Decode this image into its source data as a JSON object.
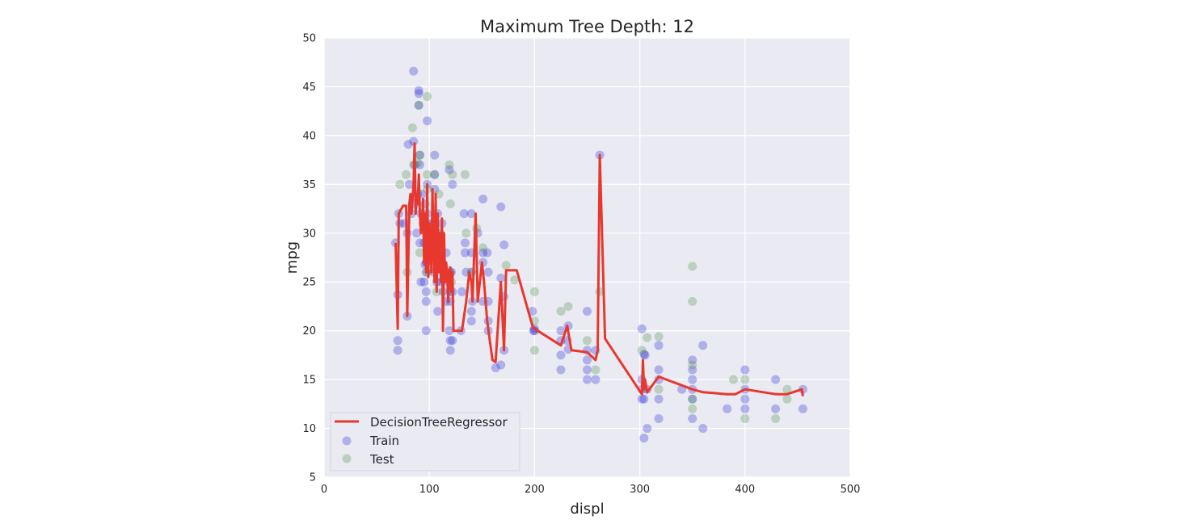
{
  "chart_data": {
    "type": "scatter",
    "title": "Maximum Tree Depth: 12",
    "xlabel": "displ",
    "ylabel": "mpg",
    "xlim": [
      0,
      500
    ],
    "ylim": [
      5,
      50
    ],
    "xticks": [
      0,
      100,
      200,
      300,
      400,
      500
    ],
    "yticks": [
      5,
      10,
      15,
      20,
      25,
      30,
      35,
      40,
      45,
      50
    ],
    "grid": true,
    "legend_position": "lower-left",
    "background": "#eaeaf2",
    "series": [
      {
        "name": "DecisionTreeRegressor",
        "kind": "line",
        "color": "#e8382e",
        "points": [
          [
            68,
            29
          ],
          [
            70,
            20.2
          ],
          [
            71,
            32
          ],
          [
            75,
            32.8
          ],
          [
            78,
            32.8
          ],
          [
            79,
            21.5
          ],
          [
            81,
            33
          ],
          [
            82,
            34
          ],
          [
            83,
            32
          ],
          [
            85,
            35
          ],
          [
            86,
            39.2
          ],
          [
            87,
            32
          ],
          [
            88,
            34
          ],
          [
            89,
            33
          ],
          [
            90,
            36
          ],
          [
            91,
            32
          ],
          [
            92,
            30
          ],
          [
            93,
            31
          ],
          [
            94,
            33.5
          ],
          [
            95,
            27
          ],
          [
            96,
            32
          ],
          [
            97,
            26
          ],
          [
            98,
            35
          ],
          [
            99,
            25.5
          ],
          [
            100,
            31
          ],
          [
            101,
            29
          ],
          [
            102,
            26
          ],
          [
            103,
            34.5
          ],
          [
            104,
            29
          ],
          [
            105,
            25
          ],
          [
            106,
            34
          ],
          [
            107,
            24
          ],
          [
            108,
            32
          ],
          [
            109,
            26
          ],
          [
            110,
            30
          ],
          [
            111,
            25
          ],
          [
            112,
            31.5
          ],
          [
            113,
            20
          ],
          [
            114,
            30
          ],
          [
            115,
            25
          ],
          [
            116,
            27
          ],
          [
            117,
            26
          ],
          [
            118,
            23
          ],
          [
            119,
            26
          ],
          [
            120,
            26.5
          ],
          [
            121,
            24
          ],
          [
            122,
            26
          ],
          [
            123,
            20
          ],
          [
            131,
            20
          ],
          [
            135,
            23
          ],
          [
            138,
            26
          ],
          [
            140,
            25
          ],
          [
            141,
            23
          ],
          [
            144,
            32
          ],
          [
            146,
            23
          ],
          [
            148,
            25
          ],
          [
            150,
            27
          ],
          [
            152,
            25
          ],
          [
            155,
            21
          ],
          [
            160,
            17
          ],
          [
            163,
            16.8
          ],
          [
            168,
            25
          ],
          [
            171,
            18
          ],
          [
            173,
            26.2
          ],
          [
            183,
            26.2
          ],
          [
            198,
            20.5
          ],
          [
            200,
            20.2
          ],
          [
            225,
            18.5
          ],
          [
            231,
            20.5
          ],
          [
            235,
            18
          ],
          [
            250,
            17.8
          ],
          [
            258,
            17
          ],
          [
            260,
            18
          ],
          [
            262,
            38
          ],
          [
            267,
            19.2
          ],
          [
            302,
            13.5
          ],
          [
            303,
            17
          ],
          [
            304,
            14
          ],
          [
            305,
            15
          ],
          [
            307,
            13.7
          ],
          [
            318,
            15.3
          ],
          [
            350,
            14
          ],
          [
            360,
            13.7
          ],
          [
            383,
            13.5
          ],
          [
            391,
            13.5
          ],
          [
            400,
            14
          ],
          [
            429,
            13.5
          ],
          [
            440,
            13.5
          ],
          [
            454,
            14
          ],
          [
            455,
            13.3
          ]
        ]
      },
      {
        "name": "Train",
        "kind": "scatter",
        "color": "#3131d9",
        "points": [
          [
            68,
            29
          ],
          [
            70,
            23.7
          ],
          [
            70,
            19
          ],
          [
            70,
            18
          ],
          [
            71,
            32
          ],
          [
            72,
            31
          ],
          [
            76,
            31
          ],
          [
            79,
            30
          ],
          [
            79,
            21.5
          ],
          [
            80,
            39.1
          ],
          [
            81,
            35
          ],
          [
            83,
            32
          ],
          [
            85,
            46.6
          ],
          [
            85,
            39.4
          ],
          [
            86,
            33
          ],
          [
            86,
            37
          ],
          [
            87,
            33.8
          ],
          [
            88,
            30
          ],
          [
            89,
            34
          ],
          [
            90,
            43.1
          ],
          [
            90,
            44.6
          ],
          [
            90,
            44.3
          ],
          [
            91,
            37
          ],
          [
            91,
            38
          ],
          [
            91,
            29
          ],
          [
            92,
            32
          ],
          [
            92,
            25
          ],
          [
            93,
            34
          ],
          [
            94,
            31
          ],
          [
            95,
            29
          ],
          [
            95,
            25
          ],
          [
            96,
            26.8
          ],
          [
            96,
            33
          ],
          [
            97,
            27
          ],
          [
            97,
            30
          ],
          [
            97,
            24
          ],
          [
            97,
            26
          ],
          [
            97,
            23
          ],
          [
            97,
            20
          ],
          [
            98,
            41.5
          ],
          [
            98,
            27
          ],
          [
            98,
            32
          ],
          [
            98,
            35
          ],
          [
            98,
            31
          ],
          [
            100,
            31
          ],
          [
            100,
            30
          ],
          [
            101,
            29
          ],
          [
            104,
            26
          ],
          [
            105,
            38
          ],
          [
            105,
            36
          ],
          [
            105,
            34.5
          ],
          [
            107,
            25
          ],
          [
            108,
            32
          ],
          [
            108,
            22
          ],
          [
            110,
            30
          ],
          [
            111,
            25
          ],
          [
            112,
            31
          ],
          [
            113,
            24
          ],
          [
            114,
            26
          ],
          [
            116,
            23
          ],
          [
            116,
            28
          ],
          [
            118,
            25
          ],
          [
            119,
            20
          ],
          [
            119,
            36.5
          ],
          [
            120,
            26
          ],
          [
            120,
            24
          ],
          [
            120,
            23
          ],
          [
            120,
            19
          ],
          [
            120,
            18
          ],
          [
            121,
            26
          ],
          [
            122,
            35
          ],
          [
            122,
            24
          ],
          [
            122,
            19
          ],
          [
            130,
            20
          ],
          [
            131,
            24
          ],
          [
            133,
            32
          ],
          [
            134,
            29
          ],
          [
            134,
            28
          ],
          [
            135,
            26
          ],
          [
            140,
            32
          ],
          [
            140,
            28
          ],
          [
            140,
            26
          ],
          [
            140,
            21
          ],
          [
            140,
            22
          ],
          [
            141,
            23
          ],
          [
            146,
            30
          ],
          [
            151,
            27
          ],
          [
            151,
            33.5
          ],
          [
            151,
            28
          ],
          [
            151,
            23
          ],
          [
            155,
            28
          ],
          [
            156,
            26
          ],
          [
            156,
            20
          ],
          [
            156,
            23
          ],
          [
            156,
            21
          ],
          [
            163,
            16.2
          ],
          [
            168,
            32.7
          ],
          [
            168,
            25.4
          ],
          [
            168,
            16.5
          ],
          [
            171,
            28.8
          ],
          [
            171,
            23.5
          ],
          [
            171,
            18
          ],
          [
            198,
            22
          ],
          [
            199,
            20
          ],
          [
            200,
            20
          ],
          [
            200,
            20.2
          ],
          [
            225,
            16
          ],
          [
            225,
            20
          ],
          [
            225,
            17.5
          ],
          [
            225,
            19
          ],
          [
            231,
            19
          ],
          [
            232,
            18.1
          ],
          [
            232,
            20.5
          ],
          [
            250,
            22
          ],
          [
            250,
            18
          ],
          [
            250,
            16
          ],
          [
            250,
            15
          ],
          [
            250,
            17
          ],
          [
            258,
            15
          ],
          [
            258,
            18
          ],
          [
            262,
            38
          ],
          [
            302,
            20.2
          ],
          [
            302,
            15
          ],
          [
            302,
            13
          ],
          [
            302,
            14
          ],
          [
            304,
            17.6
          ],
          [
            304,
            13
          ],
          [
            304,
            9
          ],
          [
            305,
            17.5
          ],
          [
            307,
            10
          ],
          [
            307,
            14
          ],
          [
            318,
            18.5
          ],
          [
            318,
            16
          ],
          [
            318,
            15
          ],
          [
            318,
            13
          ],
          [
            318,
            11
          ],
          [
            340,
            14
          ],
          [
            350,
            17
          ],
          [
            350,
            16
          ],
          [
            350,
            15
          ],
          [
            350,
            14
          ],
          [
            350,
            13
          ],
          [
            350,
            11
          ],
          [
            360,
            18.5
          ],
          [
            360,
            10
          ],
          [
            383,
            12
          ],
          [
            400,
            16
          ],
          [
            400,
            14
          ],
          [
            400,
            13
          ],
          [
            400,
            12
          ],
          [
            429,
            15
          ],
          [
            429,
            12
          ],
          [
            455,
            14
          ],
          [
            455,
            12
          ]
        ]
      },
      {
        "name": "Test",
        "kind": "scatter",
        "color": "#559455",
        "points": [
          [
            72,
            35
          ],
          [
            78,
            36
          ],
          [
            79,
            26
          ],
          [
            84,
            40.8
          ],
          [
            85,
            37
          ],
          [
            89,
            37.2
          ],
          [
            91,
            38
          ],
          [
            90,
            43.1
          ],
          [
            91,
            28
          ],
          [
            97,
            29
          ],
          [
            98,
            44
          ],
          [
            98,
            26
          ],
          [
            98,
            36
          ],
          [
            98,
            34.5
          ],
          [
            105,
            36
          ],
          [
            107,
            24
          ],
          [
            109,
            34
          ],
          [
            113,
            26
          ],
          [
            119,
            37
          ],
          [
            120,
            33
          ],
          [
            121,
            25
          ],
          [
            122,
            36
          ],
          [
            134,
            36
          ],
          [
            135,
            30
          ],
          [
            140,
            26
          ],
          [
            145,
            30.5
          ],
          [
            151,
            28.5
          ],
          [
            173,
            26.7
          ],
          [
            181,
            25.2
          ],
          [
            200,
            24
          ],
          [
            200,
            21
          ],
          [
            200,
            18
          ],
          [
            225,
            22
          ],
          [
            232,
            22.5
          ],
          [
            250,
            19
          ],
          [
            258,
            16
          ],
          [
            262,
            24
          ],
          [
            302,
            18
          ],
          [
            307,
            19.3
          ],
          [
            318,
            19.4
          ],
          [
            318,
            14
          ],
          [
            350,
            26.6
          ],
          [
            350,
            23
          ],
          [
            350,
            16.5
          ],
          [
            350,
            13
          ],
          [
            350,
            12
          ],
          [
            389,
            15
          ],
          [
            400,
            15
          ],
          [
            400,
            11
          ],
          [
            429,
            11
          ],
          [
            440,
            14
          ],
          [
            440,
            13
          ]
        ]
      }
    ]
  }
}
